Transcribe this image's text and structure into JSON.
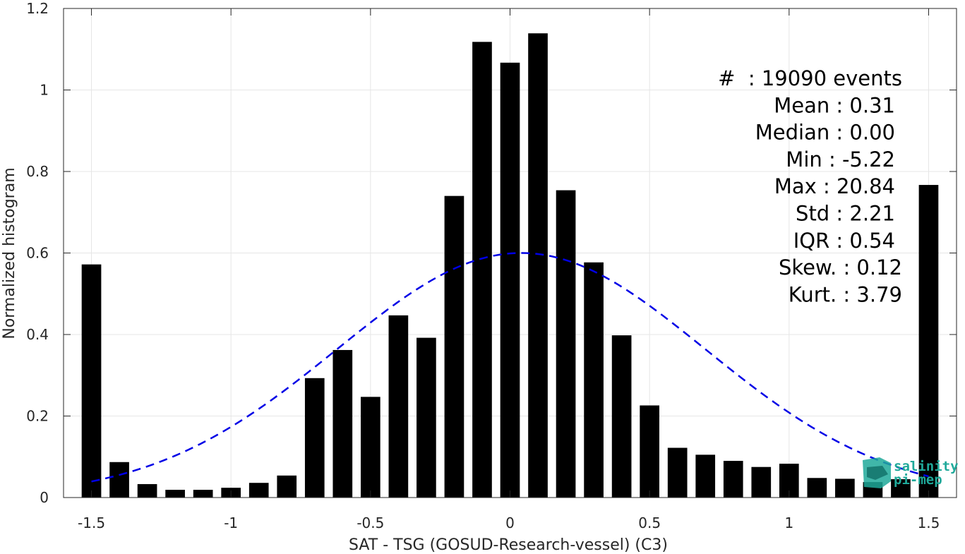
{
  "chart_data": {
    "type": "bar",
    "xlabel": "SAT - TSG (GOSUD-Research-vessel) (C3)",
    "ylabel": "Normalized histogram",
    "xlim": [
      -1.6,
      1.6
    ],
    "ylim": [
      0,
      1.2
    ],
    "x_ticks": [
      -1.5,
      -1,
      -0.5,
      0,
      0.5,
      1,
      1.5
    ],
    "x_tick_labels": [
      "-1.5",
      "-1",
      "-0.5",
      "0",
      "0.5",
      "1",
      "1.5"
    ],
    "y_ticks": [
      0,
      0.2,
      0.4,
      0.6,
      0.8,
      1,
      1.2
    ],
    "y_tick_labels": [
      "0",
      "0.2",
      "0.4",
      "0.6",
      "0.8",
      "1",
      "1.2"
    ],
    "grid": true,
    "bar_width": 0.07,
    "bar_color": "#000000",
    "bars": {
      "x": [
        -1.5,
        -1.4,
        -1.3,
        -1.2,
        -1.1,
        -1.0,
        -0.9,
        -0.8,
        -0.7,
        -0.6,
        -0.5,
        -0.4,
        -0.3,
        -0.2,
        -0.1,
        0.0,
        0.1,
        0.2,
        0.3,
        0.4,
        0.5,
        0.6,
        0.7,
        0.8,
        0.9,
        1.0,
        1.1,
        1.2,
        1.3,
        1.4,
        1.5
      ],
      "values": [
        0.572,
        0.087,
        0.033,
        0.019,
        0.019,
        0.024,
        0.036,
        0.054,
        0.293,
        0.362,
        0.247,
        0.447,
        0.392,
        0.74,
        1.118,
        1.067,
        1.139,
        0.754,
        0.577,
        0.398,
        0.226,
        0.122,
        0.105,
        0.09,
        0.075,
        0.083,
        0.048,
        0.046,
        0.038,
        0.045,
        0.767
      ]
    },
    "fit_curve": {
      "type": "gaussian",
      "style": "dashed",
      "color": "#0000e6",
      "x_range": [
        -1.5,
        1.5
      ],
      "peak": 0.6,
      "center": 0.04,
      "sigma": 0.66
    },
    "annotation": [
      "#  : 19090 events",
      "Mean : 0.31",
      "Median : 0.00",
      "Min : -5.22",
      "Max : 20.84",
      "Std : 2.21",
      "IQR : 0.54",
      "Skew. : 0.12",
      "Kurt. : 3.79"
    ]
  },
  "logo": {
    "line1": "salinity",
    "line2": "pi-mep",
    "color": "#1fa99a"
  }
}
